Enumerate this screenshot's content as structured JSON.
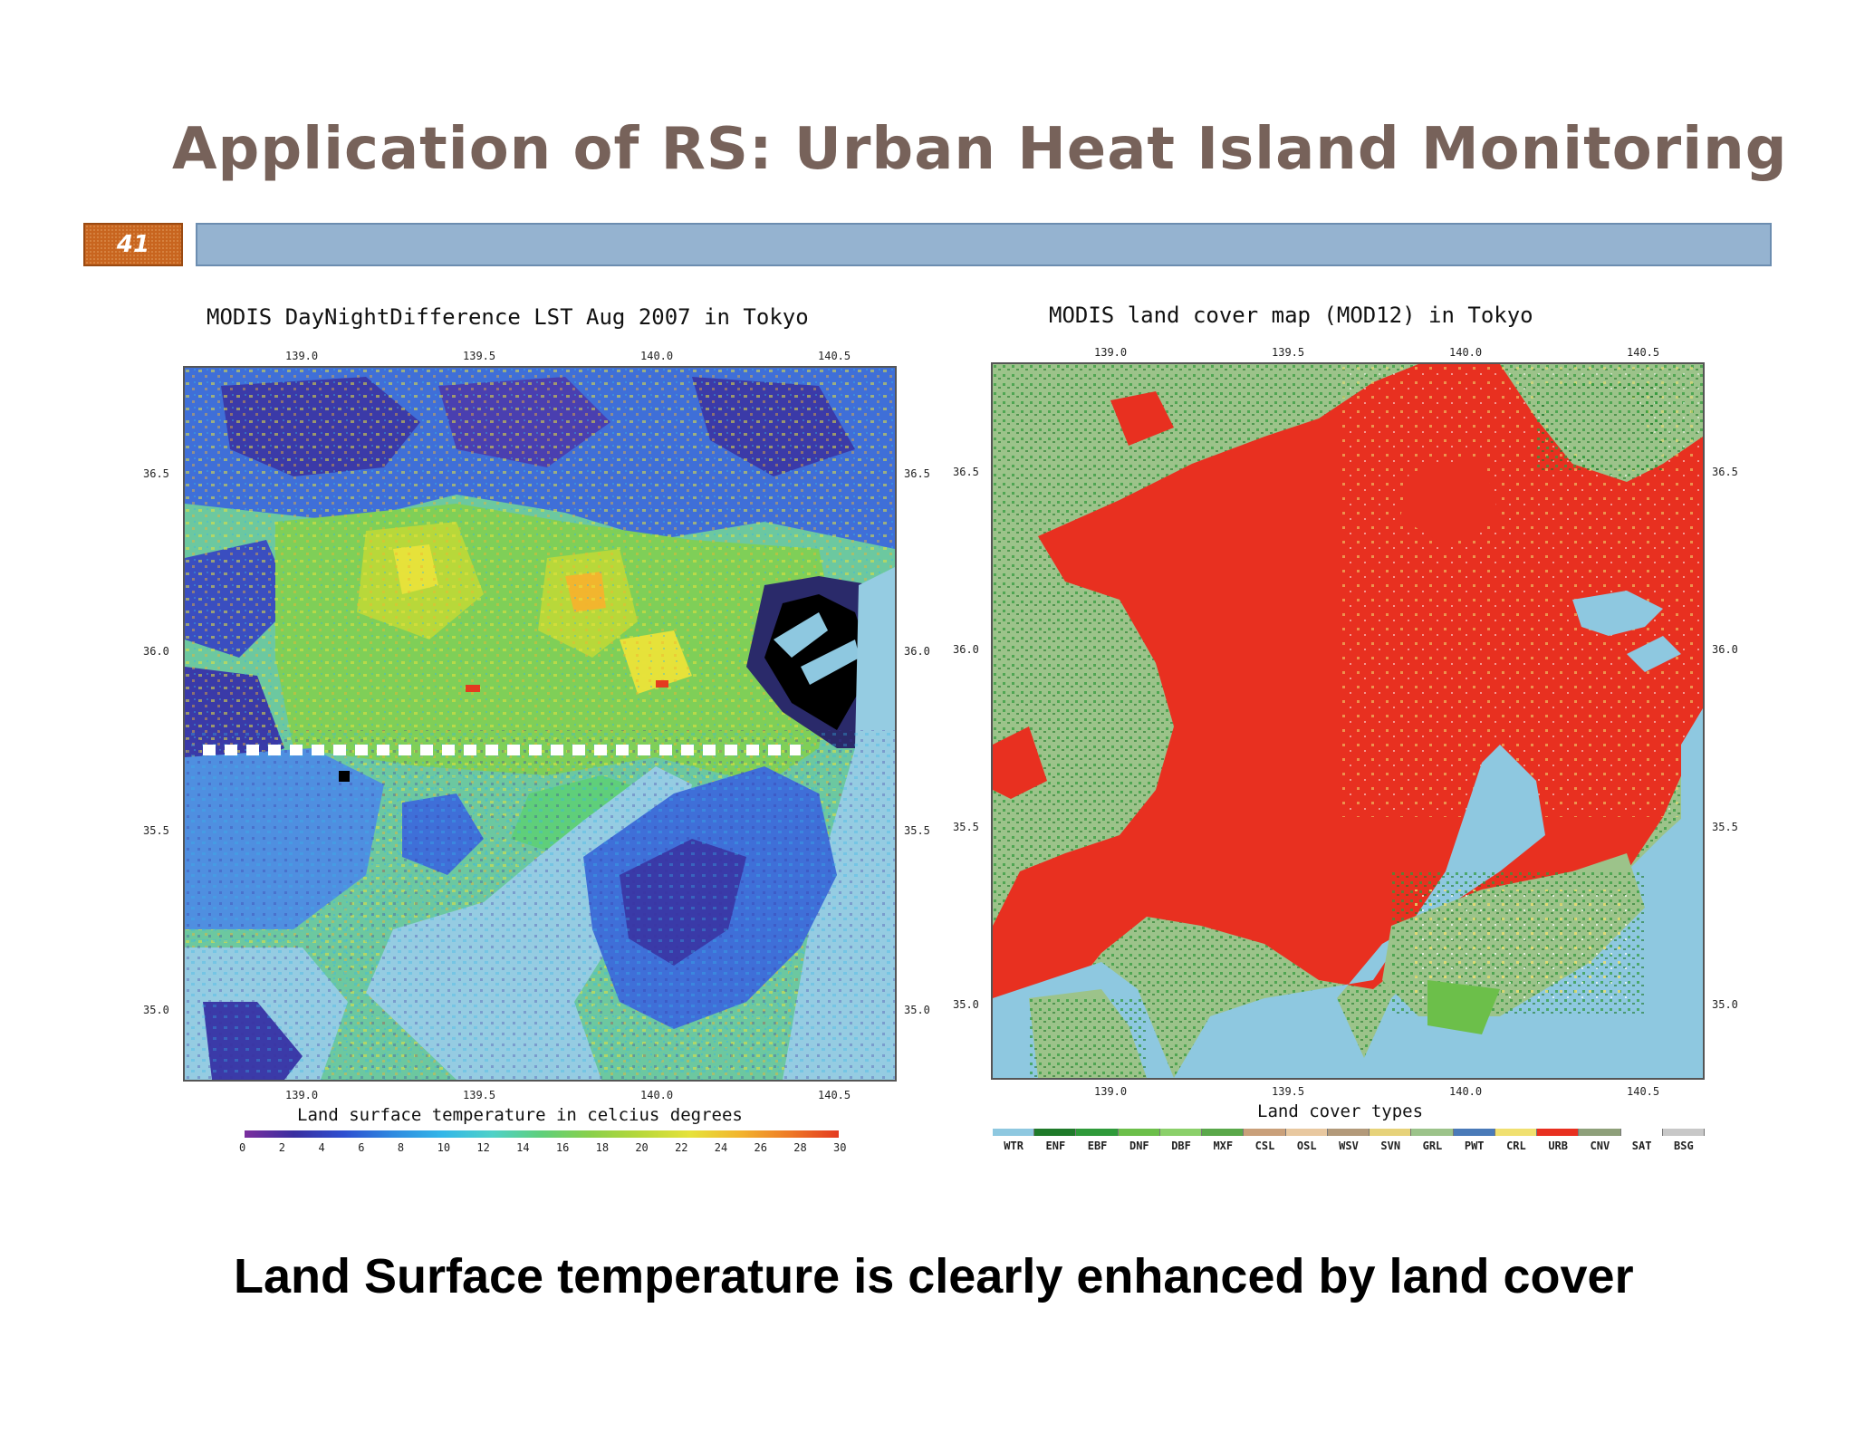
{
  "slide": {
    "title": "Application of RS: Urban Heat Island Monitoring",
    "number": "41",
    "caption": "Land Surface temperature is clearly enhanced by land cover",
    "colors": {
      "title": "#77625a",
      "bar": "#95b3d0",
      "number_box": "#c8651f"
    }
  },
  "left_map": {
    "title": "MODIS DayNightDifference LST Aug 2007 in Tokyo",
    "lon_ticks": [
      "139.0",
      "139.5",
      "140.0",
      "140.5"
    ],
    "lat_ticks": [
      "36.5",
      "36.0",
      "35.5",
      "35.0"
    ],
    "colorbar_label": "Land surface temperature in celcius degrees",
    "colorbar_ticks": [
      "0",
      "2",
      "4",
      "6",
      "8",
      "10",
      "12",
      "14",
      "16",
      "18",
      "20",
      "22",
      "24",
      "26",
      "28",
      "30"
    ],
    "colorbar_colors": [
      "#7b2f9e",
      "#3a2fa0",
      "#2f4fd0",
      "#2f8ae0",
      "#33b7e8",
      "#4fd1c8",
      "#5fcf7a",
      "#8ad04a",
      "#b8d83a",
      "#e6e23a",
      "#f2b52e",
      "#ee7a26",
      "#e43a1f"
    ],
    "transect_marker": "white dashed line"
  },
  "right_map": {
    "title": "MODIS land cover map (MOD12) in Tokyo",
    "lon_ticks": [
      "139.0",
      "139.5",
      "140.0",
      "140.5"
    ],
    "lat_ticks": [
      "36.5",
      "36.0",
      "35.5",
      "35.0"
    ],
    "legend_label": "Land cover types",
    "legend_classes": [
      "WTR",
      "ENF",
      "EBF",
      "DNF",
      "DBF",
      "MXF",
      "CSL",
      "OSL",
      "WSV",
      "SVN",
      "GRL",
      "PWT",
      "CRL",
      "URB",
      "CNV",
      "SAT",
      "BSG"
    ],
    "legend_colors": [
      "#8ec8e0",
      "#1f7a2a",
      "#2f9a3a",
      "#6cbf4a",
      "#8bd06a",
      "#5aa84a",
      "#c9a07a",
      "#e8c8a0",
      "#b39a7a",
      "#e6d27a",
      "#9cc38a",
      "#4a7ab8",
      "#f0e070",
      "#e83020",
      "#8ea07a",
      "#ffffff",
      "#c8c8c8"
    ]
  }
}
